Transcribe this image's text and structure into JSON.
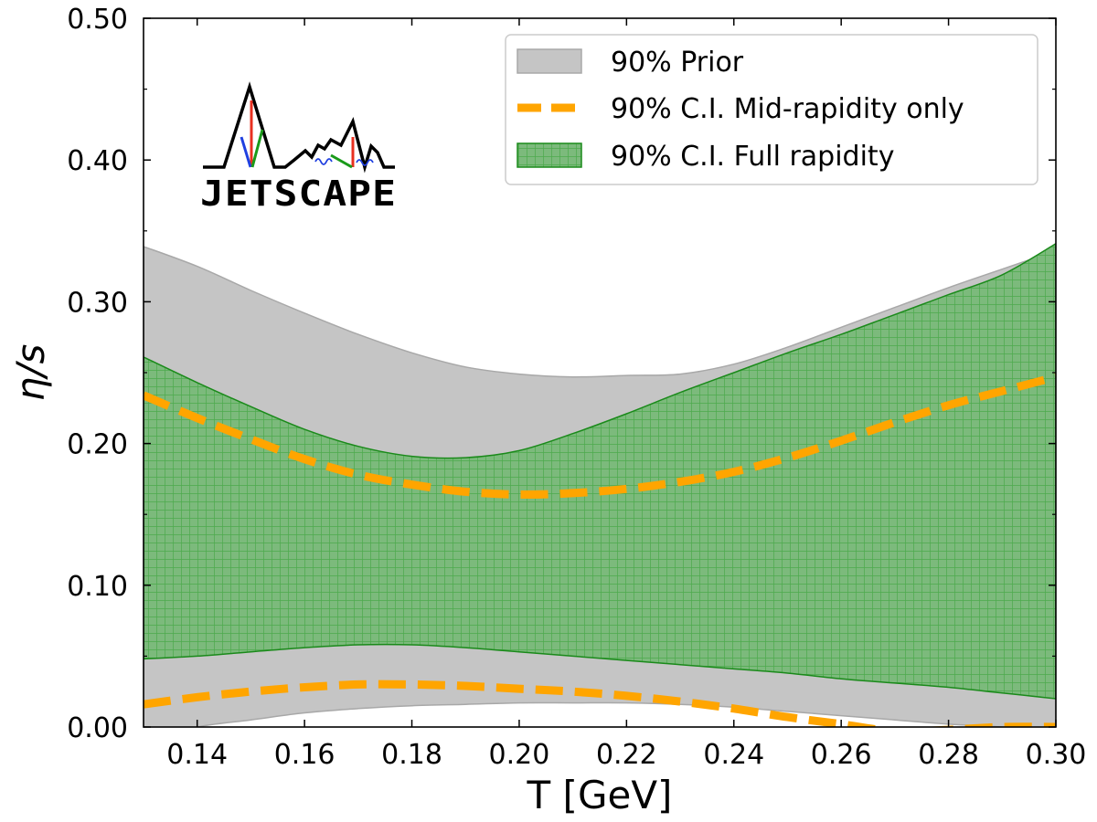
{
  "chart_data": {
    "type": "area",
    "xlabel": "T [GeV]",
    "ylabel": "η/s",
    "xlim": [
      0.13,
      0.3
    ],
    "ylim": [
      0.0,
      0.5
    ],
    "xticks": [
      "0.14",
      "0.16",
      "0.18",
      "0.20",
      "0.22",
      "0.24",
      "0.26",
      "0.28",
      "0.30"
    ],
    "yticks": [
      "0.00",
      "0.10",
      "0.20",
      "0.30",
      "0.40",
      "0.50"
    ],
    "logo_text": "JETSCAPE",
    "legend": {
      "placement": "top-right",
      "entries": [
        "90% Prior",
        "90% C.I. Mid-rapidity only",
        "90% C.I. Full rapidity"
      ]
    },
    "colors": {
      "prior": "#c5c5c5",
      "prior_edge": "#a8a8a8",
      "mid": "#ffa500",
      "full": "#7cba7c",
      "full_edge": "#1a8a1a",
      "full_hatch": "#4caa4c"
    },
    "series": [
      {
        "name": "90% Prior",
        "kind": "band",
        "x": [
          0.13,
          0.14,
          0.15,
          0.16,
          0.17,
          0.18,
          0.19,
          0.2,
          0.21,
          0.22,
          0.23,
          0.24,
          0.25,
          0.26,
          0.27,
          0.28,
          0.29,
          0.3
        ],
        "upper": [
          0.339,
          0.325,
          0.308,
          0.292,
          0.277,
          0.264,
          0.254,
          0.249,
          0.247,
          0.248,
          0.249,
          0.256,
          0.268,
          0.282,
          0.296,
          0.31,
          0.323,
          0.336
        ],
        "lower": [
          -0.01,
          0.0,
          0.005,
          0.01,
          0.013,
          0.015,
          0.016,
          0.017,
          0.017,
          0.017,
          0.016,
          0.014,
          0.011,
          0.008,
          0.005,
          0.002,
          0.0,
          -0.003
        ]
      },
      {
        "name": "90% C.I. Full rapidity",
        "kind": "band",
        "x": [
          0.13,
          0.14,
          0.15,
          0.16,
          0.17,
          0.18,
          0.19,
          0.2,
          0.21,
          0.22,
          0.23,
          0.24,
          0.25,
          0.26,
          0.27,
          0.28,
          0.29,
          0.3
        ],
        "upper": [
          0.261,
          0.243,
          0.226,
          0.21,
          0.198,
          0.191,
          0.19,
          0.195,
          0.207,
          0.221,
          0.236,
          0.25,
          0.264,
          0.277,
          0.291,
          0.305,
          0.319,
          0.341
        ],
        "lower": [
          0.048,
          0.05,
          0.053,
          0.056,
          0.058,
          0.058,
          0.056,
          0.053,
          0.05,
          0.047,
          0.044,
          0.041,
          0.038,
          0.034,
          0.031,
          0.028,
          0.024,
          0.02
        ]
      },
      {
        "name": "90% C.I. Mid-rapidity only",
        "kind": "dashed-lines",
        "x": [
          0.13,
          0.14,
          0.15,
          0.16,
          0.17,
          0.18,
          0.19,
          0.2,
          0.21,
          0.22,
          0.23,
          0.24,
          0.25,
          0.26,
          0.27,
          0.28,
          0.29,
          0.3
        ],
        "upper": [
          0.234,
          0.218,
          0.203,
          0.189,
          0.178,
          0.171,
          0.166,
          0.164,
          0.165,
          0.168,
          0.173,
          0.18,
          0.19,
          0.202,
          0.215,
          0.227,
          0.237,
          0.247
        ],
        "lower": [
          0.016,
          0.021,
          0.025,
          0.028,
          0.03,
          0.03,
          0.029,
          0.027,
          0.025,
          0.022,
          0.018,
          0.013,
          0.007,
          0.002,
          -0.003,
          -0.002,
          0.0,
          0.0
        ]
      }
    ]
  }
}
